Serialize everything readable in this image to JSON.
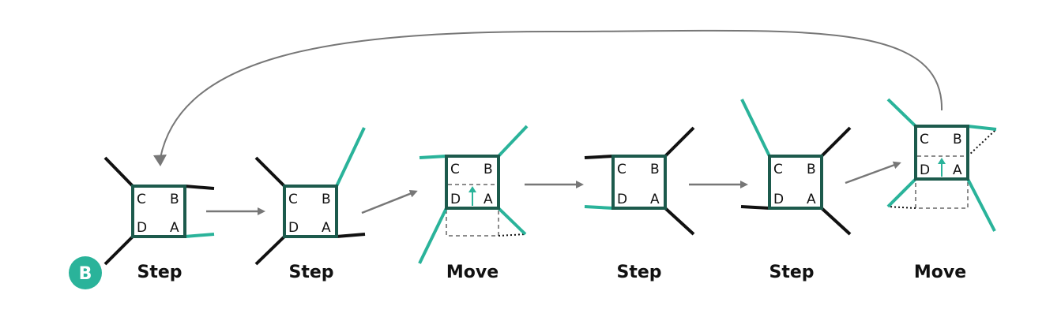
{
  "badge": {
    "label": "B"
  },
  "colors": {
    "body": "#1c5a4c",
    "accent": "#2ab39a",
    "leg": "#111111",
    "arrow": "#777777",
    "ghost": "#666666"
  },
  "corners": {
    "a": "A",
    "b": "B",
    "c": "C",
    "d": "D"
  },
  "stages": [
    {
      "label": "Step"
    },
    {
      "label": "Step"
    },
    {
      "label": "Move"
    },
    {
      "label": "Step"
    },
    {
      "label": "Step"
    },
    {
      "label": "Move"
    }
  ]
}
